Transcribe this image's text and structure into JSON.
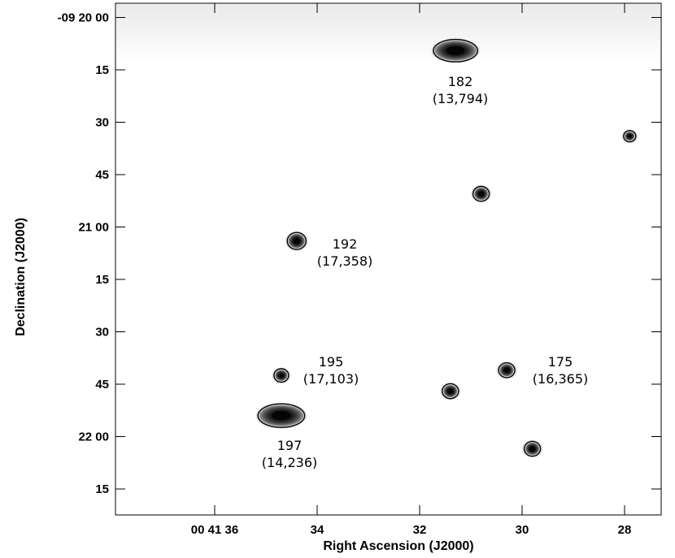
{
  "axes": {
    "x_title": "Right Ascension (J2000)",
    "y_title": "Declination (J2000)",
    "x_ticks": [
      {
        "label": "00 41 36",
        "ra_s": 36
      },
      {
        "label": "34",
        "ra_s": 34
      },
      {
        "label": "32",
        "ra_s": 32
      },
      {
        "label": "30",
        "ra_s": 30
      },
      {
        "label": "28",
        "ra_s": 28
      }
    ],
    "y_ticks": [
      {
        "label": "-09 20 00",
        "dec_s": 0
      },
      {
        "label": "15",
        "dec_s": 15
      },
      {
        "label": "30",
        "dec_s": 30
      },
      {
        "label": "45",
        "dec_s": 45
      },
      {
        "label": "21 00",
        "dec_s": 60
      },
      {
        "label": "15",
        "dec_s": 75
      },
      {
        "label": "30",
        "dec_s": 90
      },
      {
        "label": "45",
        "dec_s": 105
      },
      {
        "label": "22 00",
        "dec_s": 120
      },
      {
        "label": "15",
        "dec_s": 135
      }
    ]
  },
  "sources": [
    {
      "id": "182",
      "value": "(13,794)",
      "ra_s": 31.3,
      "dec_s": 9.5,
      "size": 1.6
    },
    {
      "id": "192",
      "value": "(17,358)",
      "ra_s": 34.4,
      "dec_s": 64,
      "size": 1.0
    },
    {
      "id": "195",
      "value": "(17,103)",
      "ra_s": 34.7,
      "dec_s": 102.5,
      "size": 0.75
    },
    {
      "id": "197",
      "value": "(14,236)",
      "ra_s": 34.7,
      "dec_s": 114,
      "size": 1.7
    },
    {
      "id": "175",
      "value": "(16,365)",
      "ra_s": 30.3,
      "dec_s": 101,
      "size": 0.85
    },
    {
      "id": "",
      "value": "",
      "ra_s": 27.9,
      "dec_s": 34,
      "size": 0.6
    },
    {
      "id": "",
      "value": "",
      "ra_s": 30.8,
      "dec_s": 50.5,
      "size": 0.85
    },
    {
      "id": "",
      "value": "",
      "ra_s": 31.4,
      "dec_s": 107,
      "size": 0.85
    },
    {
      "id": "",
      "value": "",
      "ra_s": 29.8,
      "dec_s": 123.5,
      "size": 0.85
    }
  ]
}
